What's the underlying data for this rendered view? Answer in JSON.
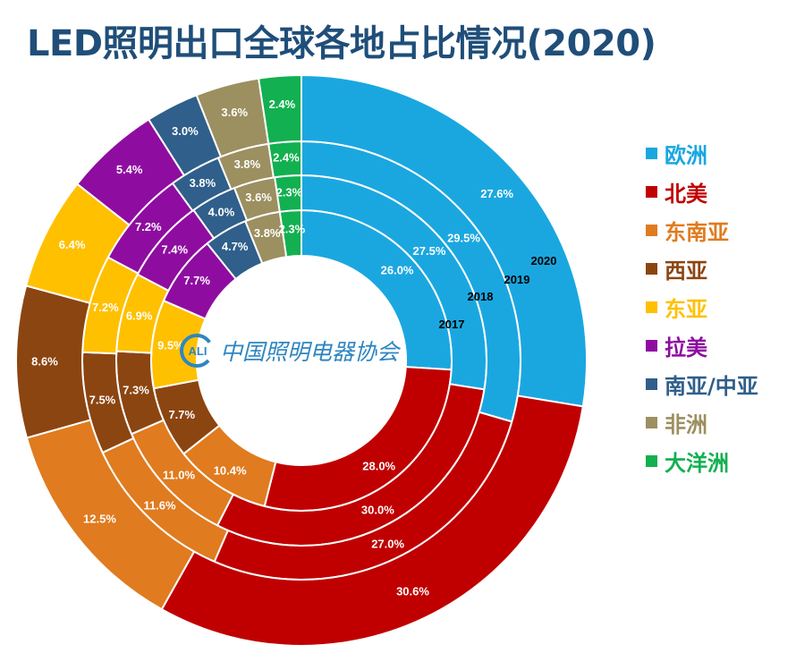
{
  "title": "LED照明出口全球各地占比情况(2020)",
  "logo": {
    "badge_text": "ALI",
    "org_name": "中国照明电器协会"
  },
  "chart_data": {
    "type": "donut",
    "title": "LED照明出口全球各地占比情况(2020)",
    "legend_position": "right",
    "categories": [
      "欧洲",
      "北美",
      "东南亚",
      "西亚",
      "东亚",
      "拉美",
      "南亚/中亚",
      "非洲",
      "大洋洲"
    ],
    "colors": [
      "#1aa7e0",
      "#c00000",
      "#e07b1f",
      "#8b4511",
      "#ffc000",
      "#8e0da0",
      "#2f5f8a",
      "#9c8f60",
      "#12b050"
    ],
    "series": [
      {
        "name": "2017",
        "values": [
          26.0,
          28.0,
          10.4,
          7.7,
          9.5,
          7.7,
          4.7,
          3.8,
          2.3
        ],
        "labels": [
          "26.0%",
          "28.0%",
          "10.4%",
          "7.7%",
          "9.5%",
          "7.7%",
          "4.7%",
          "3.8%",
          "2.3%"
        ]
      },
      {
        "name": "2018",
        "values": [
          27.5,
          30.0,
          11.0,
          7.3,
          6.9,
          7.4,
          4.0,
          3.6,
          2.3
        ],
        "labels": [
          "27.5%",
          "30.0%",
          "11.0%",
          "7.3%",
          "6.9%",
          "7.4%",
          "4.0%",
          "3.6%",
          "2.3%"
        ]
      },
      {
        "name": "2019",
        "values": [
          29.5,
          27.0,
          11.6,
          7.5,
          7.2,
          7.2,
          3.8,
          3.8,
          2.4
        ],
        "labels": [
          "29.5%",
          "27.0%",
          "11.6%",
          "7.5%",
          "7.2%",
          "7.2%",
          "3.8%",
          "3.8%",
          "2.4%"
        ]
      },
      {
        "name": "2020",
        "values": [
          27.6,
          30.6,
          12.5,
          8.6,
          6.4,
          5.4,
          3.0,
          3.6,
          2.4
        ],
        "labels": [
          "27.6%",
          "30.6%",
          "12.5%",
          "8.6%",
          "6.4%",
          "5.4%",
          "3.0%",
          "3.6%",
          "2.4%"
        ]
      }
    ]
  }
}
